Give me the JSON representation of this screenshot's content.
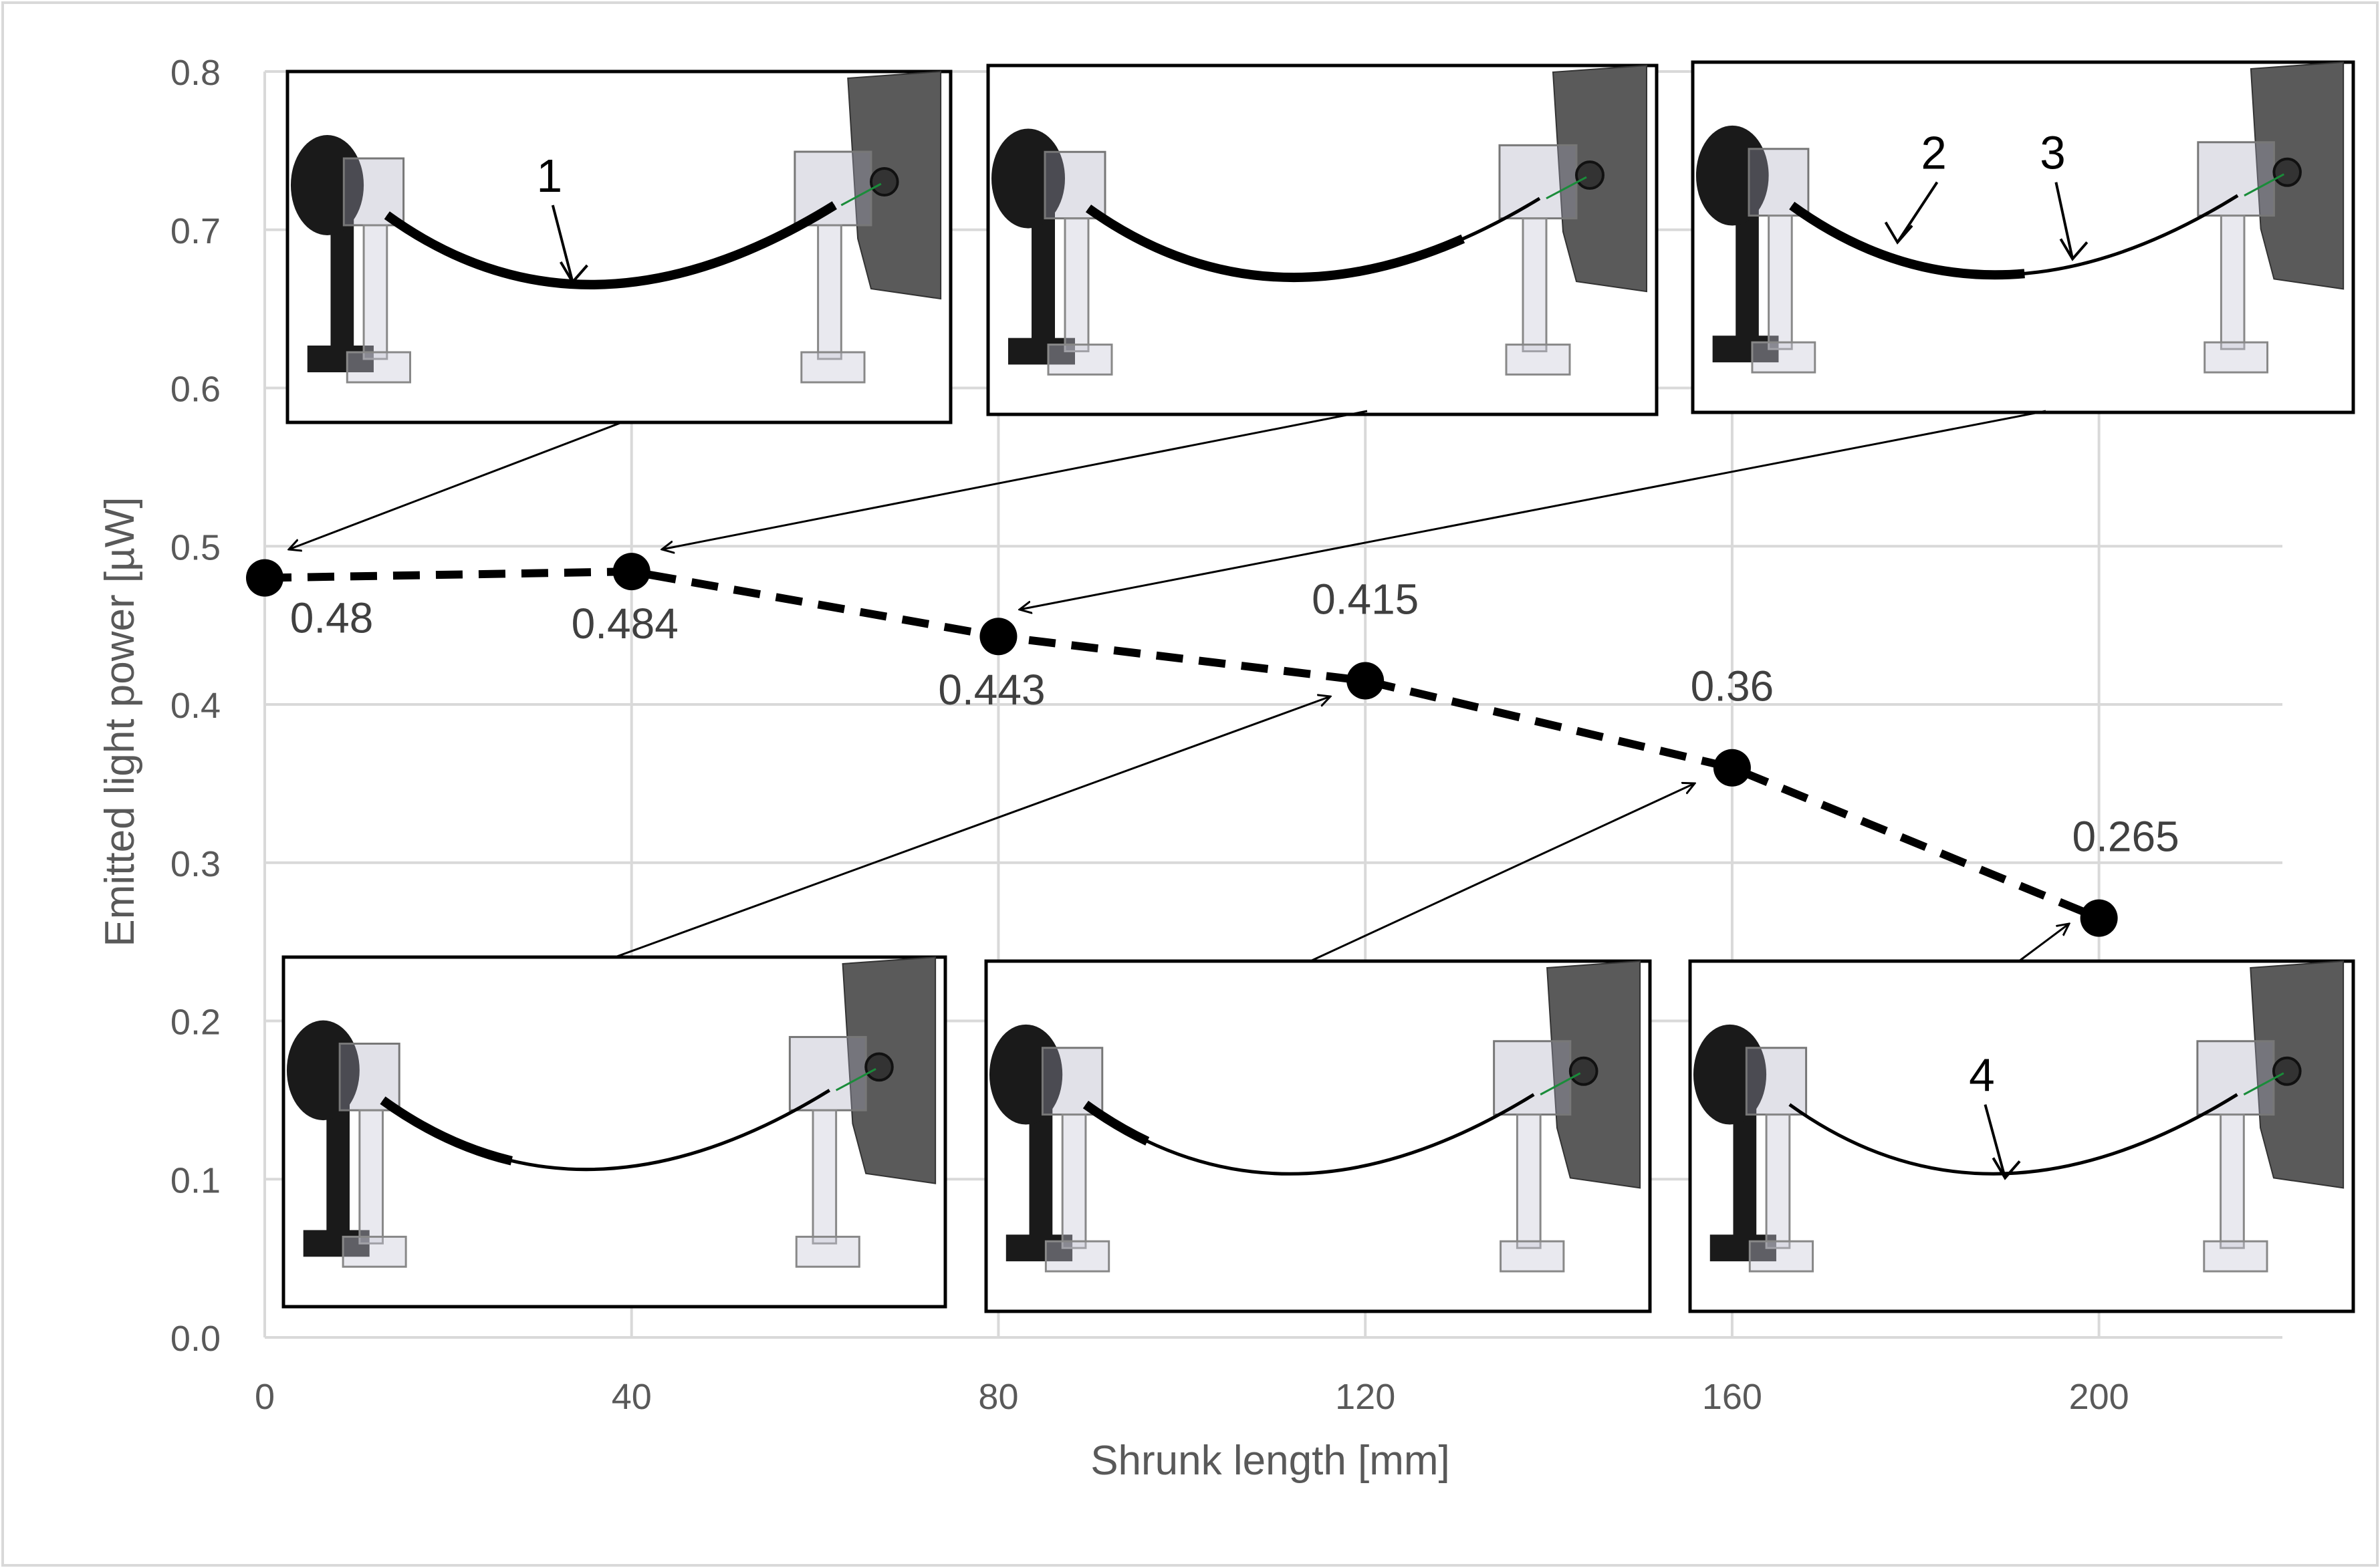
{
  "chart_data": {
    "type": "scatter",
    "title": "",
    "xlabel": "Shrunk length [mm]",
    "ylabel": "Emitted light power [µW]",
    "xlim": [
      0,
      220
    ],
    "ylim": [
      0,
      0.8
    ],
    "grid": true,
    "x_ticks": [
      0,
      40,
      80,
      120,
      160,
      200
    ],
    "x_tick_labels": [
      "0",
      "40",
      "80",
      "120",
      "160",
      "200"
    ],
    "y_ticks": [
      0,
      0.1,
      0.2,
      0.3,
      0.4,
      0.5,
      0.6,
      0.7,
      0.8
    ],
    "y_tick_labels": [
      "0.0",
      "0.1",
      "0.2",
      "0.3",
      "0.4",
      "0.5",
      "0.6",
      "0.7",
      "0.8"
    ],
    "series": [
      {
        "name": "Emitted light power",
        "line_style": "dashed",
        "x": [
          0,
          40,
          80,
          120,
          160,
          200
        ],
        "values": [
          0.48,
          0.484,
          0.443,
          0.415,
          0.36,
          0.265
        ],
        "data_labels": [
          "0.48",
          "0.484",
          "0.443",
          "0.415",
          "0.36",
          "0.265"
        ]
      }
    ],
    "insets": [
      {
        "id": "inset-1",
        "description": "fiber setup render",
        "callouts": [
          "1"
        ]
      },
      {
        "id": "inset-2",
        "description": "fiber setup render",
        "callouts": []
      },
      {
        "id": "inset-3",
        "description": "fiber setup render",
        "callouts": [
          "2",
          "3"
        ]
      },
      {
        "id": "inset-4",
        "description": "fiber setup render",
        "callouts": []
      },
      {
        "id": "inset-5",
        "description": "fiber setup render",
        "callouts": []
      },
      {
        "id": "inset-6",
        "description": "fiber setup render",
        "callouts": [
          "4"
        ]
      }
    ]
  },
  "colors": {
    "background": "#ffffff",
    "grid": "#d9d9d9",
    "axis_text": "#595959",
    "series": "#000000",
    "data_label": "#404040",
    "plate": "#5a5a5a"
  }
}
